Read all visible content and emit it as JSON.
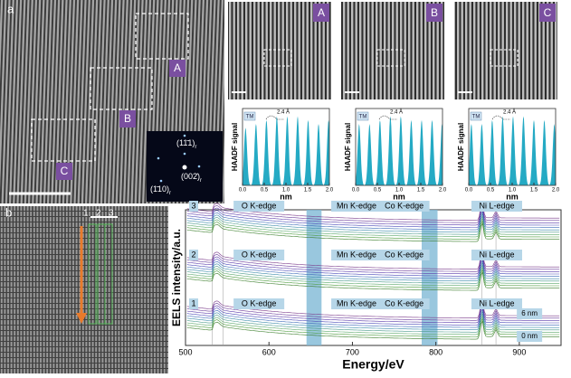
{
  "panel_a": {
    "label": "a",
    "regions": [
      "A",
      "B",
      "C"
    ],
    "fft_labels": [
      {
        "text": "(11̄1)",
        "sub": "r"
      },
      {
        "text": "(002̄)",
        "sub": "r"
      },
      {
        "text": "(1̄10)",
        "sub": "r"
      }
    ]
  },
  "profiles": [
    {
      "region": "A",
      "ylabel": "HAADF signal",
      "xlabel": "nm",
      "tm": "TM",
      "spacing": "2.4 Å",
      "xlim": [
        0,
        2
      ],
      "ylim": [
        0,
        1
      ],
      "xticks": [
        {
          "value": 0,
          "label": "0.0"
        },
        0.5,
        {
          "value": 1,
          "label": "1.0"
        },
        1.5,
        {
          "value": 2,
          "label": "2.0"
        }
      ],
      "peaks": [
        0.07,
        0.31,
        0.55,
        0.79,
        1.03,
        1.27,
        1.51,
        1.75,
        1.98
      ],
      "heights": [
        0.75,
        0.8,
        0.85,
        0.9,
        0.9,
        0.9,
        0.85,
        0.8,
        0.85
      ]
    },
    {
      "region": "B",
      "ylabel": "HAADF signal",
      "xlabel": "nm",
      "tm": "TM",
      "spacing": "2.4 Å",
      "xlim": [
        0,
        2
      ],
      "ylim": [
        0,
        1
      ],
      "xticks": [
        {
          "value": 0,
          "label": "0.0"
        },
        0.5,
        {
          "value": 1,
          "label": "1.0"
        },
        1.5,
        {
          "value": 2,
          "label": "2.0"
        }
      ],
      "peaks": [
        0.08,
        0.32,
        0.56,
        0.8,
        1.04,
        1.28,
        1.52,
        1.76,
        1.99
      ],
      "heights": [
        0.8,
        0.8,
        0.85,
        0.9,
        0.9,
        0.85,
        0.85,
        0.85,
        0.8
      ]
    },
    {
      "region": "C",
      "ylabel": "HAADF signal",
      "xlabel": "nm",
      "tm": "TM",
      "spacing": "2.4 Å",
      "xlim": [
        0,
        2
      ],
      "ylim": [
        0,
        1
      ],
      "xticks": [
        {
          "value": 0,
          "label": "0.0"
        },
        0.5,
        {
          "value": 1,
          "label": "1.0"
        },
        1.5,
        {
          "value": 2,
          "label": "2.0"
        }
      ],
      "peaks": [
        0.06,
        0.3,
        0.54,
        0.78,
        1.02,
        1.26,
        1.5,
        1.74,
        1.97
      ],
      "heights": [
        0.8,
        0.8,
        0.85,
        0.9,
        0.9,
        0.9,
        0.85,
        0.85,
        0.8
      ]
    }
  ],
  "panel_b": {
    "label": "b",
    "lines": [
      "1",
      "2",
      "3"
    ]
  },
  "eels": {
    "xlabel": "Energy/eV",
    "ylabel": "EELS intensity/a.u.",
    "xlim": [
      500,
      950
    ],
    "xticks": [
      500,
      600,
      700,
      800,
      900
    ],
    "groups": [
      "1",
      "2",
      "3"
    ],
    "edge_labels": [
      "O K-edge",
      "Mn K-edge",
      "Co K-edge",
      "Ni L-edge"
    ],
    "edge_x": [
      588,
      705,
      762,
      873
    ],
    "bands": [
      [
        645,
        663
      ],
      [
        783,
        802
      ]
    ],
    "depth_labels": [
      "6 nm",
      "0 nm"
    ]
  }
}
